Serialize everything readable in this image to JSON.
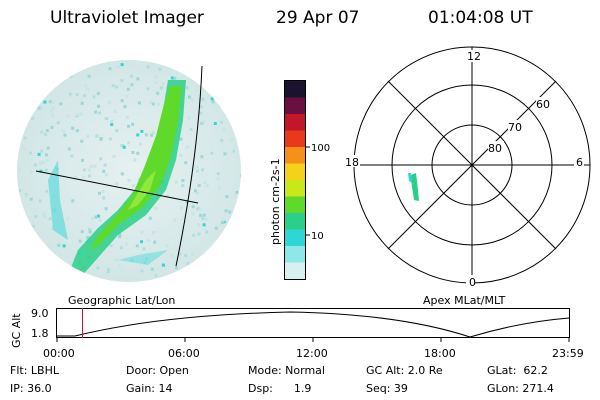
{
  "header": {
    "title": "Ultraviolet Imager",
    "date": "29 Apr 07",
    "time": "01:04:08 UT"
  },
  "colorbar": {
    "label": "photon cm-2s-1",
    "ticks": [
      "100",
      "10"
    ],
    "colors": [
      "#1b1230",
      "#6a1040",
      "#c0182a",
      "#e83a1a",
      "#f5901a",
      "#f5d21a",
      "#c8e81a",
      "#5fd92a",
      "#2ad08a",
      "#2fd6d6",
      "#8ee8e8",
      "#d8f0f0"
    ]
  },
  "polar_plot": {
    "mlt_labels": {
      "top": "12",
      "bottom": "0",
      "left": "18",
      "right": "6"
    },
    "lat_labels": [
      "60",
      "70",
      "80"
    ]
  },
  "altitude_plot": {
    "left_label": "Geographic Lat/Lon",
    "right_label": "Apex MLat/MLT",
    "y_axis_label": "GC Alt",
    "y_ticks": [
      "9.0",
      "1.8"
    ],
    "x_ticks": [
      "00:00",
      "06:00",
      "12:00",
      "18:00",
      "23:59"
    ],
    "current_time_marker_color": "#c0182a"
  },
  "status": {
    "flt": "Flt: LBHL",
    "ip": "IP: 36.0",
    "door": "Door: Open",
    "gain": "Gain: 14",
    "mode": "Mode: Normal",
    "dsp": "Dsp:      1.9",
    "gc_alt": "GC Alt: 2.0 Re",
    "seq": "Seq: 39",
    "glat": "GLat:  62.2",
    "glon": "GLon: 271.4"
  }
}
